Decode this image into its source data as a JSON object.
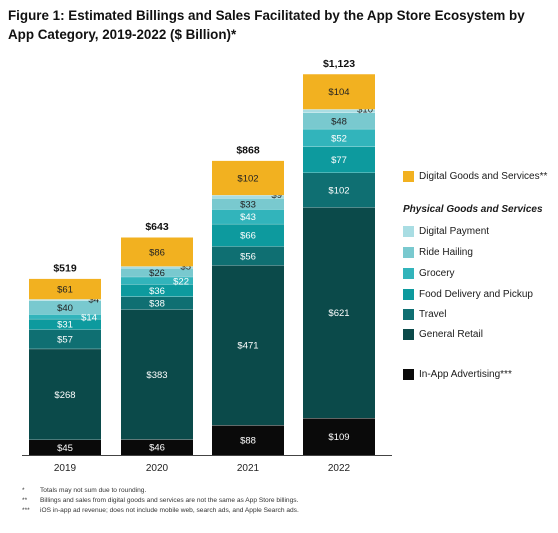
{
  "title": "Figure 1: Estimated Billings and Sales Facilitated by the App Store Ecosystem by App Category, 2019-2022 ($ Billion)*",
  "colors": {
    "digital_goods": "#f2b120",
    "digital_payment": "#a9dde3",
    "ride_hailing": "#79c9cf",
    "grocery": "#32b4bb",
    "food_delivery": "#0d9a9e",
    "travel": "#0f6f72",
    "general_retail": "#0b4a4a",
    "in_app_advertising": "#0a0a0a"
  },
  "legend": {
    "heading": "Physical Goods and Services",
    "digital_goods": "Digital Goods and Services**",
    "digital_payment": "Digital Payment",
    "ride_hailing": "Ride Hailing",
    "grocery": "Grocery",
    "food_delivery": "Food Delivery and Pickup",
    "travel": "Travel",
    "general_retail": "General Retail",
    "in_app_advertising": "In-App Advertising***"
  },
  "chart_data": {
    "type": "bar",
    "stacked": true,
    "categories": [
      "2019",
      "2020",
      "2021",
      "2022"
    ],
    "totals": [
      "$519",
      "$643",
      "$868",
      "$1,123"
    ],
    "series": [
      {
        "key": "in_app_advertising",
        "name": "In-App Advertising***",
        "values": [
          45,
          46,
          88,
          109
        ],
        "labels": [
          "$45",
          "$46",
          "$88",
          "$109"
        ]
      },
      {
        "key": "general_retail",
        "name": "General Retail",
        "values": [
          268,
          383,
          471,
          621
        ],
        "labels": [
          "$268",
          "$383",
          "$471",
          "$621"
        ]
      },
      {
        "key": "travel",
        "name": "Travel",
        "values": [
          57,
          38,
          56,
          102
        ],
        "labels": [
          "$57",
          "$38",
          "$56",
          "$102"
        ]
      },
      {
        "key": "food_delivery",
        "name": "Food Delivery and Pickup",
        "values": [
          31,
          36,
          66,
          77
        ],
        "labels": [
          "$31",
          "$36",
          "$66",
          "$77"
        ]
      },
      {
        "key": "grocery",
        "name": "Grocery",
        "values": [
          14,
          22,
          43,
          52
        ],
        "labels": [
          "$14",
          "$22",
          "$43",
          "$52"
        ]
      },
      {
        "key": "ride_hailing",
        "name": "Ride Hailing",
        "values": [
          40,
          26,
          33,
          48
        ],
        "labels": [
          "$40",
          "$26",
          "$33",
          "$48"
        ]
      },
      {
        "key": "digital_payment",
        "name": "Digital Payment",
        "values": [
          4,
          5,
          9,
          10
        ],
        "labels": [
          "$4",
          "$5",
          "$9",
          "$10"
        ]
      },
      {
        "key": "digital_goods",
        "name": "Digital Goods and Services**",
        "values": [
          61,
          86,
          102,
          104
        ],
        "labels": [
          "$61",
          "$86",
          "$102",
          "$104"
        ]
      }
    ],
    "ylim": [
      0,
      1123
    ]
  },
  "footnotes": [
    {
      "mark": "*",
      "text": "Totals may not sum due to rounding."
    },
    {
      "mark": "**",
      "text": "Billings and sales from digital goods and services are not the same as App Store billings."
    },
    {
      "mark": "***",
      "text": "iOS in-app ad revenue; does not include mobile web, search ads, and Apple Search ads."
    }
  ]
}
